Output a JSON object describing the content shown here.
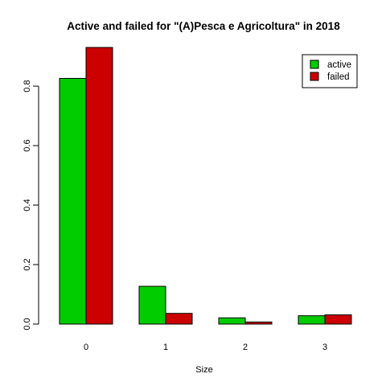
{
  "chart_data": {
    "type": "bar",
    "title": "Active and failed for \"(A)Pesca e Agricoltura\" in 2018",
    "xlabel": "Size",
    "ylabel": "",
    "categories": [
      "0",
      "1",
      "2",
      "3"
    ],
    "series": [
      {
        "name": "active",
        "color": "#00CC00",
        "values": [
          0.826,
          0.127,
          0.021,
          0.028
        ]
      },
      {
        "name": "failed",
        "color": "#CC0000",
        "values": [
          0.93,
          0.036,
          0.007,
          0.031
        ]
      }
    ],
    "ylim": [
      0,
      0.93
    ],
    "yticks": [
      0.0,
      0.2,
      0.4,
      0.6,
      0.8
    ],
    "ytick_labels": [
      "0.0",
      "0.2",
      "0.4",
      "0.6",
      "0.8"
    ],
    "grid": false,
    "legend_position": "top-right"
  }
}
